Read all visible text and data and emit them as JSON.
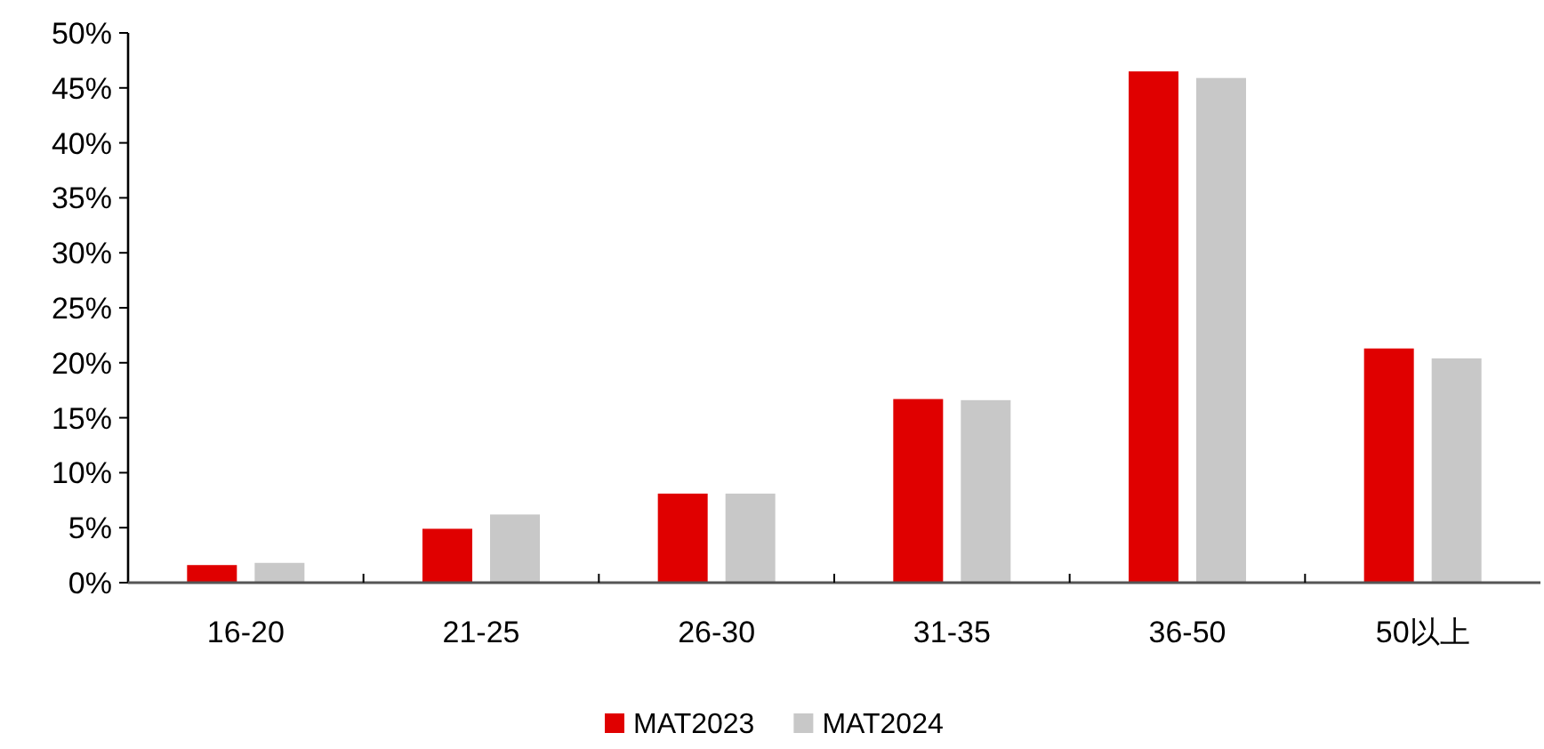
{
  "chart_data": {
    "type": "bar",
    "categories": [
      "16-20",
      "21-25",
      "26-30",
      "31-35",
      "36-50",
      "50以上"
    ],
    "series": [
      {
        "name": "MAT2023",
        "color": "#e00000",
        "values": [
          1.6,
          4.9,
          8.1,
          16.7,
          46.5,
          21.3
        ]
      },
      {
        "name": "MAT2024",
        "color": "#c8c8c8",
        "values": [
          1.8,
          6.2,
          8.1,
          16.6,
          45.9,
          20.4
        ]
      }
    ],
    "ylim": [
      0,
      50
    ],
    "yticks": [
      {
        "value": 0,
        "label": "0%"
      },
      {
        "value": 5,
        "label": "5%"
      },
      {
        "value": 10,
        "label": "10%"
      },
      {
        "value": 15,
        "label": "15%"
      },
      {
        "value": 20,
        "label": "20%"
      },
      {
        "value": 25,
        "label": "25%"
      },
      {
        "value": 30,
        "label": "30%"
      },
      {
        "value": 35,
        "label": "35%"
      },
      {
        "value": 40,
        "label": "40%"
      },
      {
        "value": 45,
        "label": "45%"
      },
      {
        "value": 50,
        "label": "50%"
      }
    ],
    "legend": "bottom",
    "grid": false
  }
}
